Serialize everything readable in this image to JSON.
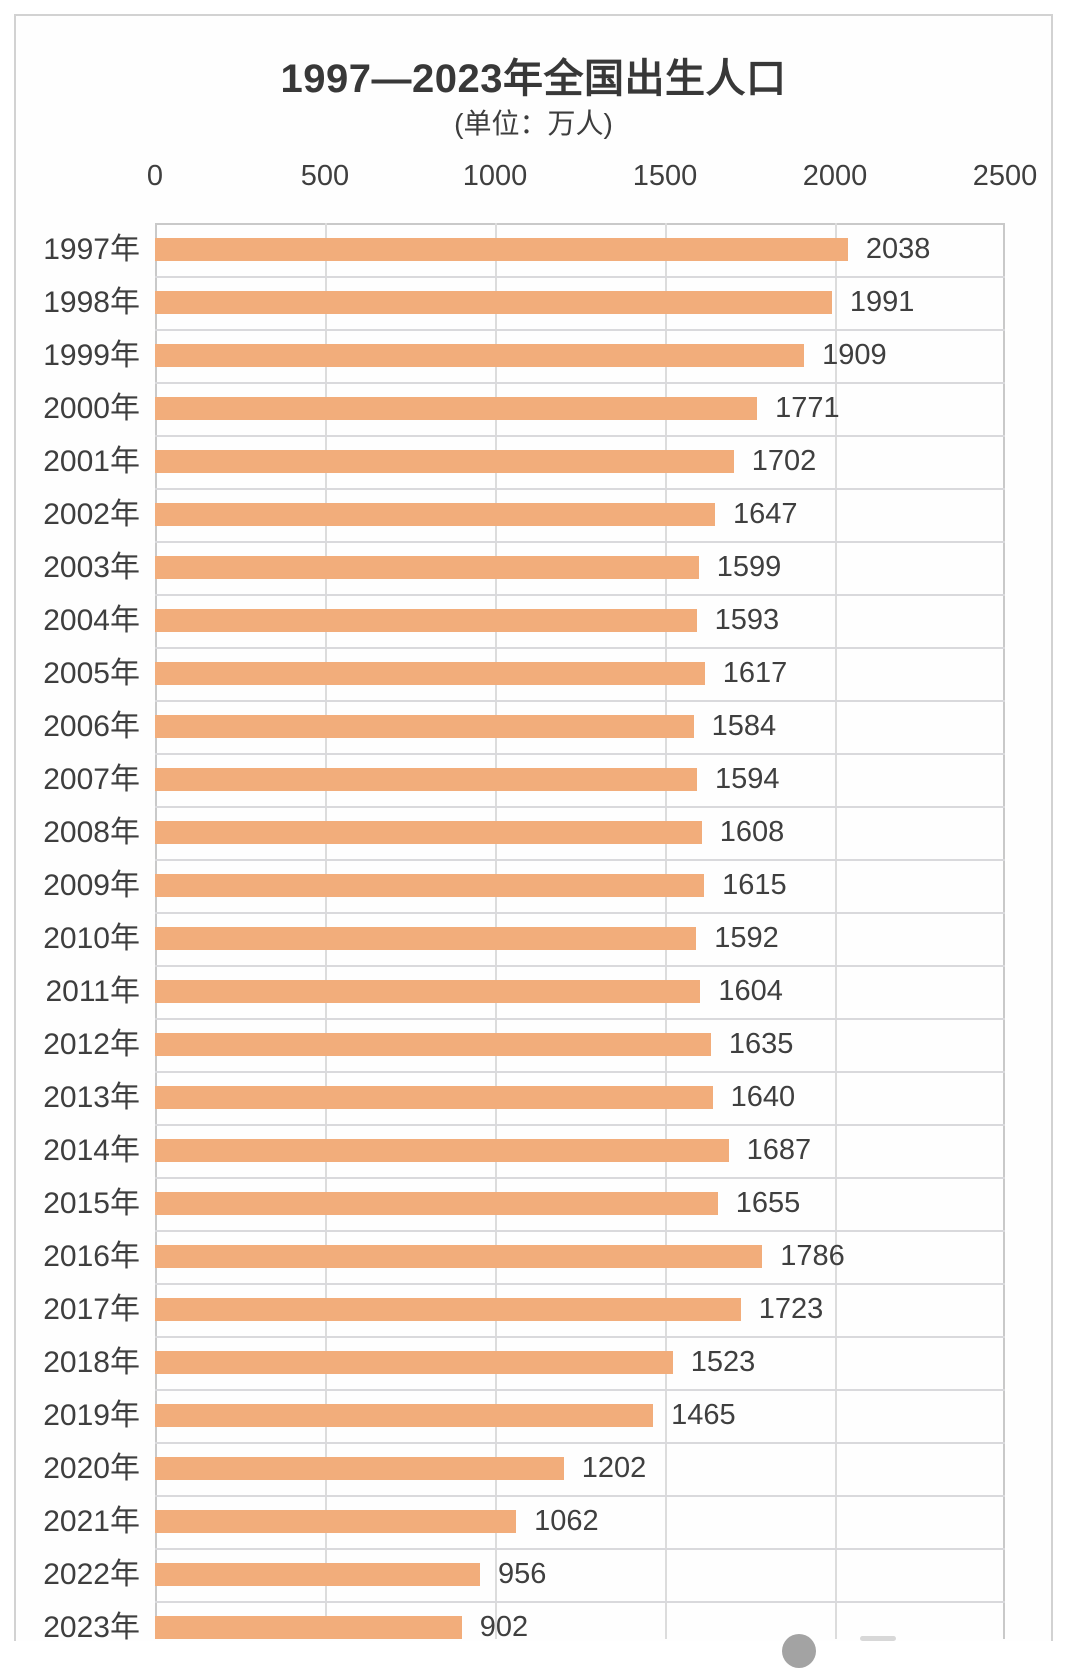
{
  "chart_data": {
    "type": "bar",
    "orientation": "horizontal",
    "title": "1997—2023年全国出生人口",
    "subtitle": "(单位：万人)",
    "unit": "万人",
    "categories": [
      "1997年",
      "1998年",
      "1999年",
      "2000年",
      "2001年",
      "2002年",
      "2003年",
      "2004年",
      "2005年",
      "2006年",
      "2007年",
      "2008年",
      "2009年",
      "2010年",
      "2011年",
      "2012年",
      "2013年",
      "2014年",
      "2015年",
      "2016年",
      "2017年",
      "2018年",
      "2019年",
      "2020年",
      "2021年",
      "2022年",
      "2023年"
    ],
    "values": [
      2038,
      1991,
      1909,
      1771,
      1702,
      1647,
      1599,
      1593,
      1617,
      1584,
      1594,
      1608,
      1615,
      1592,
      1604,
      1635,
      1640,
      1687,
      1655,
      1786,
      1723,
      1523,
      1465,
      1202,
      1062,
      956,
      902
    ],
    "x_ticks": [
      0,
      500,
      1000,
      1500,
      2000,
      2500
    ],
    "xlim": [
      0,
      2500
    ],
    "grid": true,
    "value_labels": true,
    "legend": "none"
  },
  "colors": {
    "bar": "#F2AD7B",
    "gridline": "#dcdcdc",
    "row_line": "#d9d9dc",
    "text": "#3f3f3f",
    "card_border": "#d2d2d2"
  }
}
